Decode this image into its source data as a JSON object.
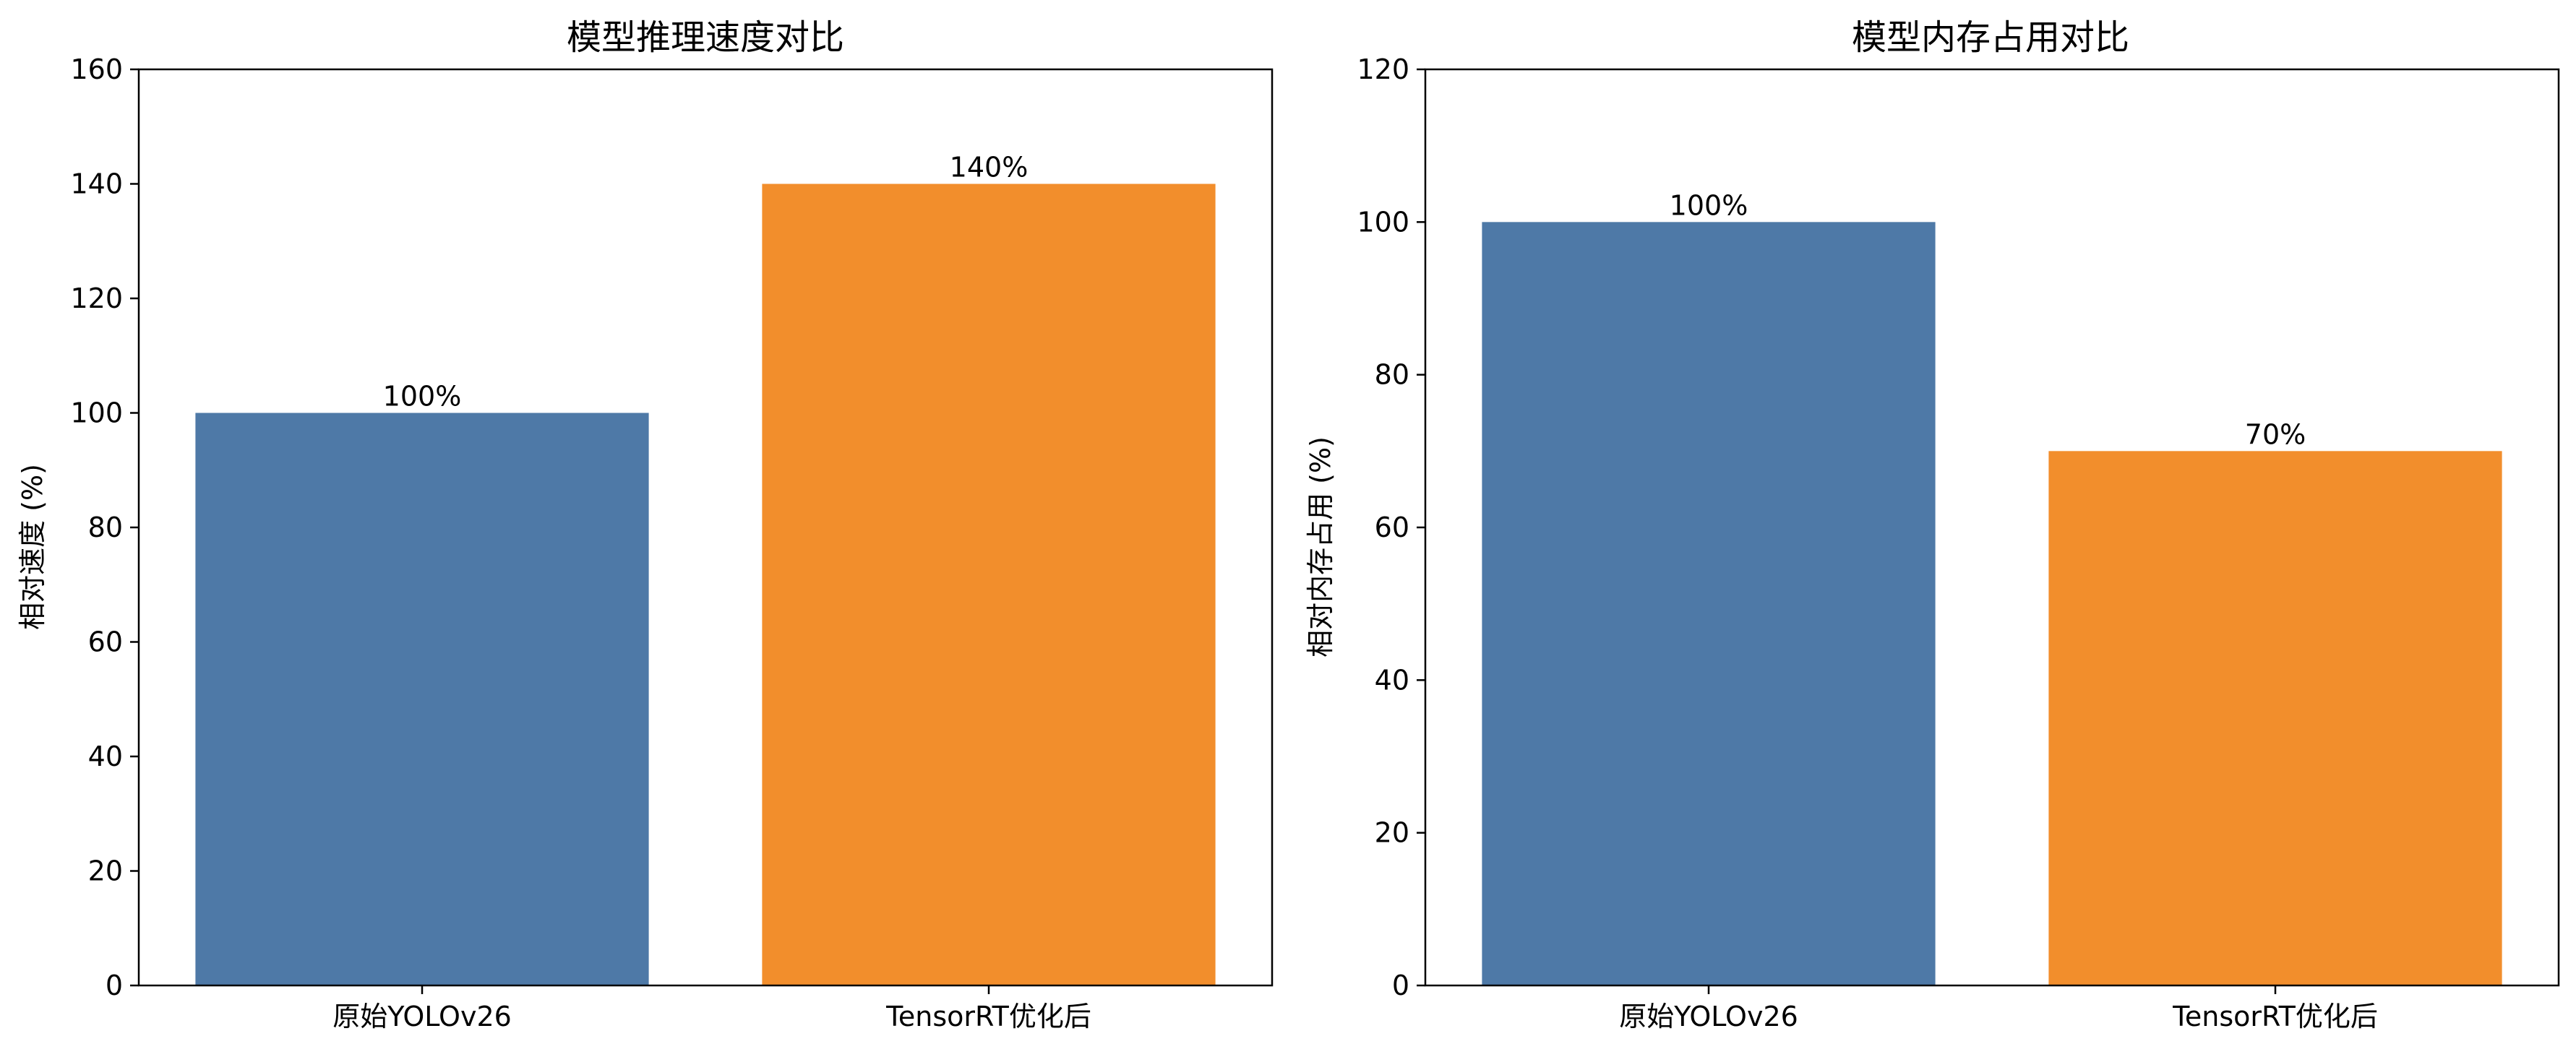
{
  "colors": {
    "original": "#4e79a7",
    "optimized": "#f28e2c",
    "axis": "#000000",
    "background": "#ffffff"
  },
  "chart_data": [
    {
      "type": "bar",
      "title": "模型推理速度对比",
      "xlabel": "",
      "ylabel": "相对速度 (%)",
      "categories": [
        "原始YOLOv26",
        "TensorRT优化后"
      ],
      "values": [
        100,
        140
      ],
      "data_labels": [
        "100%",
        "140%"
      ],
      "ylim": [
        0,
        160
      ],
      "yticks": [
        0,
        20,
        40,
        60,
        80,
        100,
        120,
        140,
        160
      ],
      "grid": false,
      "bar_colors": [
        "#4e79a7",
        "#f28e2c"
      ]
    },
    {
      "type": "bar",
      "title": "模型内存占用对比",
      "xlabel": "",
      "ylabel": "相对内存占用 (%)",
      "categories": [
        "原始YOLOv26",
        "TensorRT优化后"
      ],
      "values": [
        100,
        70
      ],
      "data_labels": [
        "100%",
        "70%"
      ],
      "ylim": [
        0,
        120
      ],
      "yticks": [
        0,
        20,
        40,
        60,
        80,
        100,
        120
      ],
      "grid": false,
      "bar_colors": [
        "#4e79a7",
        "#f28e2c"
      ]
    }
  ]
}
